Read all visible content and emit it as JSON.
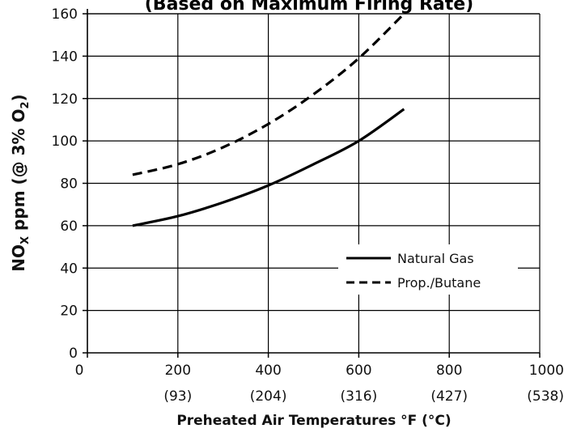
{
  "chart_data": {
    "type": "line",
    "title": "(Based on Maximum Firing Rate)",
    "xlabel": "Preheated Air Temperatures °F (°C)",
    "ylabel_main": "NO",
    "ylabel_sub": "X",
    "ylabel_rest": " ppm (@ 3% O",
    "ylabel_sub2": "2",
    "ylabel_end": ")",
    "xlim": [
      0,
      1000
    ],
    "ylim": [
      0,
      160
    ],
    "xticks": [
      {
        "value": 0,
        "label": "0",
        "sublabel": ""
      },
      {
        "value": 200,
        "label": "200",
        "sublabel": "(93)"
      },
      {
        "value": 400,
        "label": "400",
        "sublabel": "(204)"
      },
      {
        "value": 600,
        "label": "600",
        "sublabel": "(316)"
      },
      {
        "value": 800,
        "label": "800",
        "sublabel": "(427)"
      },
      {
        "value": 1000,
        "label": "1000",
        "sublabel": "(538)"
      }
    ],
    "yticks": [
      {
        "value": 0,
        "label": "0"
      },
      {
        "value": 20,
        "label": "20"
      },
      {
        "value": 40,
        "label": "40"
      },
      {
        "value": 60,
        "label": "60"
      },
      {
        "value": 80,
        "label": "80"
      },
      {
        "value": 100,
        "label": "100"
      },
      {
        "value": 120,
        "label": "120"
      },
      {
        "value": 140,
        "label": "140"
      },
      {
        "value": 160,
        "label": "160"
      }
    ],
    "grid": true,
    "legend_position": "lower-right",
    "series": [
      {
        "name": "Natural Gas",
        "style": "solid",
        "color": "#000000",
        "x": [
          100,
          200,
          300,
          400,
          500,
          600,
          700
        ],
        "y": [
          60,
          64.5,
          71,
          79,
          89,
          100,
          115
        ]
      },
      {
        "name": "Prop./Butane",
        "style": "dashed",
        "color": "#000000",
        "x": [
          100,
          200,
          300,
          400,
          500,
          600,
          700
        ],
        "y": [
          84,
          89,
          97,
          108,
          122,
          139,
          160
        ]
      }
    ]
  }
}
